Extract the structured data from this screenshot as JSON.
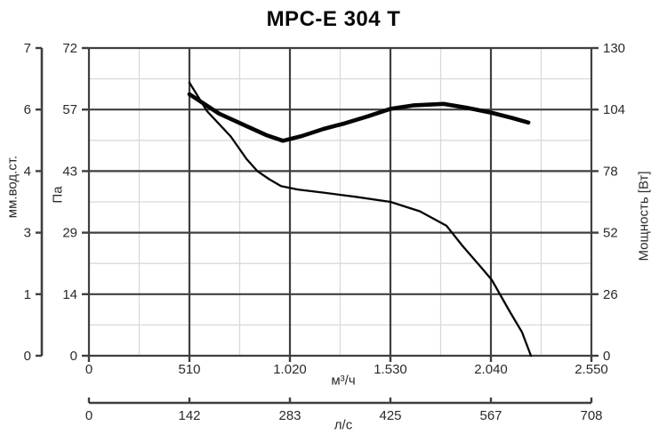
{
  "chart_data": {
    "type": "line",
    "title": "MPC-E 304 T",
    "text_color": "#2a2a2a",
    "curve_color": "#050505",
    "grid": {
      "major_color": "#3f3f3f",
      "minor_color": "#d9d9d9",
      "legend": "off"
    },
    "x_axis_m3h": {
      "title": "м³/ч",
      "min": 0,
      "max": 2550,
      "ticks": [
        0,
        510,
        1020,
        1530,
        2040,
        2550
      ],
      "tick_labels": [
        "0",
        "510",
        "1.020",
        "1.530",
        "2.040",
        "2.550"
      ]
    },
    "x_axis_ls": {
      "title": "л/с",
      "min": 0,
      "max": 708,
      "ticks": [
        0,
        142,
        283,
        425,
        567,
        708
      ],
      "tick_labels": [
        "0",
        "142",
        "283",
        "425",
        "567",
        "708"
      ]
    },
    "y_axis_pa": {
      "title": "Па",
      "min": 0,
      "max": 72,
      "tick_labels_top_to_bottom": [
        "72",
        "57",
        "43",
        "29",
        "14",
        "0"
      ]
    },
    "y_axis_mm": {
      "title": "мм.вод.ст.",
      "tick_labels_top_to_bottom": [
        "7",
        "6",
        "4",
        "3",
        "1",
        "0"
      ]
    },
    "y_axis_power": {
      "title": "Мощность [Вт]",
      "min": 0,
      "max": 130,
      "tick_labels_top_to_bottom": [
        "130",
        "104",
        "78",
        "52",
        "26",
        "0"
      ]
    },
    "series": [
      {
        "name": "pressure",
        "y_axis": "pa",
        "stroke_width": 2.3,
        "points": [
          [
            510,
            63.9
          ],
          [
            600,
            57.2
          ],
          [
            720,
            51.3
          ],
          [
            800,
            46.0
          ],
          [
            855,
            43.2
          ],
          [
            915,
            41.3
          ],
          [
            975,
            39.7
          ],
          [
            1060,
            38.9
          ],
          [
            1200,
            38.1
          ],
          [
            1350,
            37.2
          ],
          [
            1530,
            36.0
          ],
          [
            1680,
            33.8
          ],
          [
            1815,
            30.4
          ],
          [
            1896,
            25.7
          ],
          [
            1990,
            20.7
          ],
          [
            2045,
            17.7
          ],
          [
            2135,
            10.4
          ],
          [
            2198,
            5.5
          ],
          [
            2243,
            0
          ]
        ]
      },
      {
        "name": "power",
        "y_axis": "power",
        "stroke_width": 4.6,
        "points": [
          [
            510,
            110.5
          ],
          [
            660,
            102.3
          ],
          [
            810,
            96.6
          ],
          [
            900,
            93.2
          ],
          [
            985,
            90.8
          ],
          [
            1080,
            92.8
          ],
          [
            1190,
            95.8
          ],
          [
            1300,
            98.2
          ],
          [
            1410,
            101.0
          ],
          [
            1530,
            104.3
          ],
          [
            1650,
            105.8
          ],
          [
            1800,
            106.4
          ],
          [
            1920,
            104.7
          ],
          [
            2045,
            102.6
          ],
          [
            2145,
            100.5
          ],
          [
            2230,
            98.5
          ]
        ]
      }
    ]
  }
}
